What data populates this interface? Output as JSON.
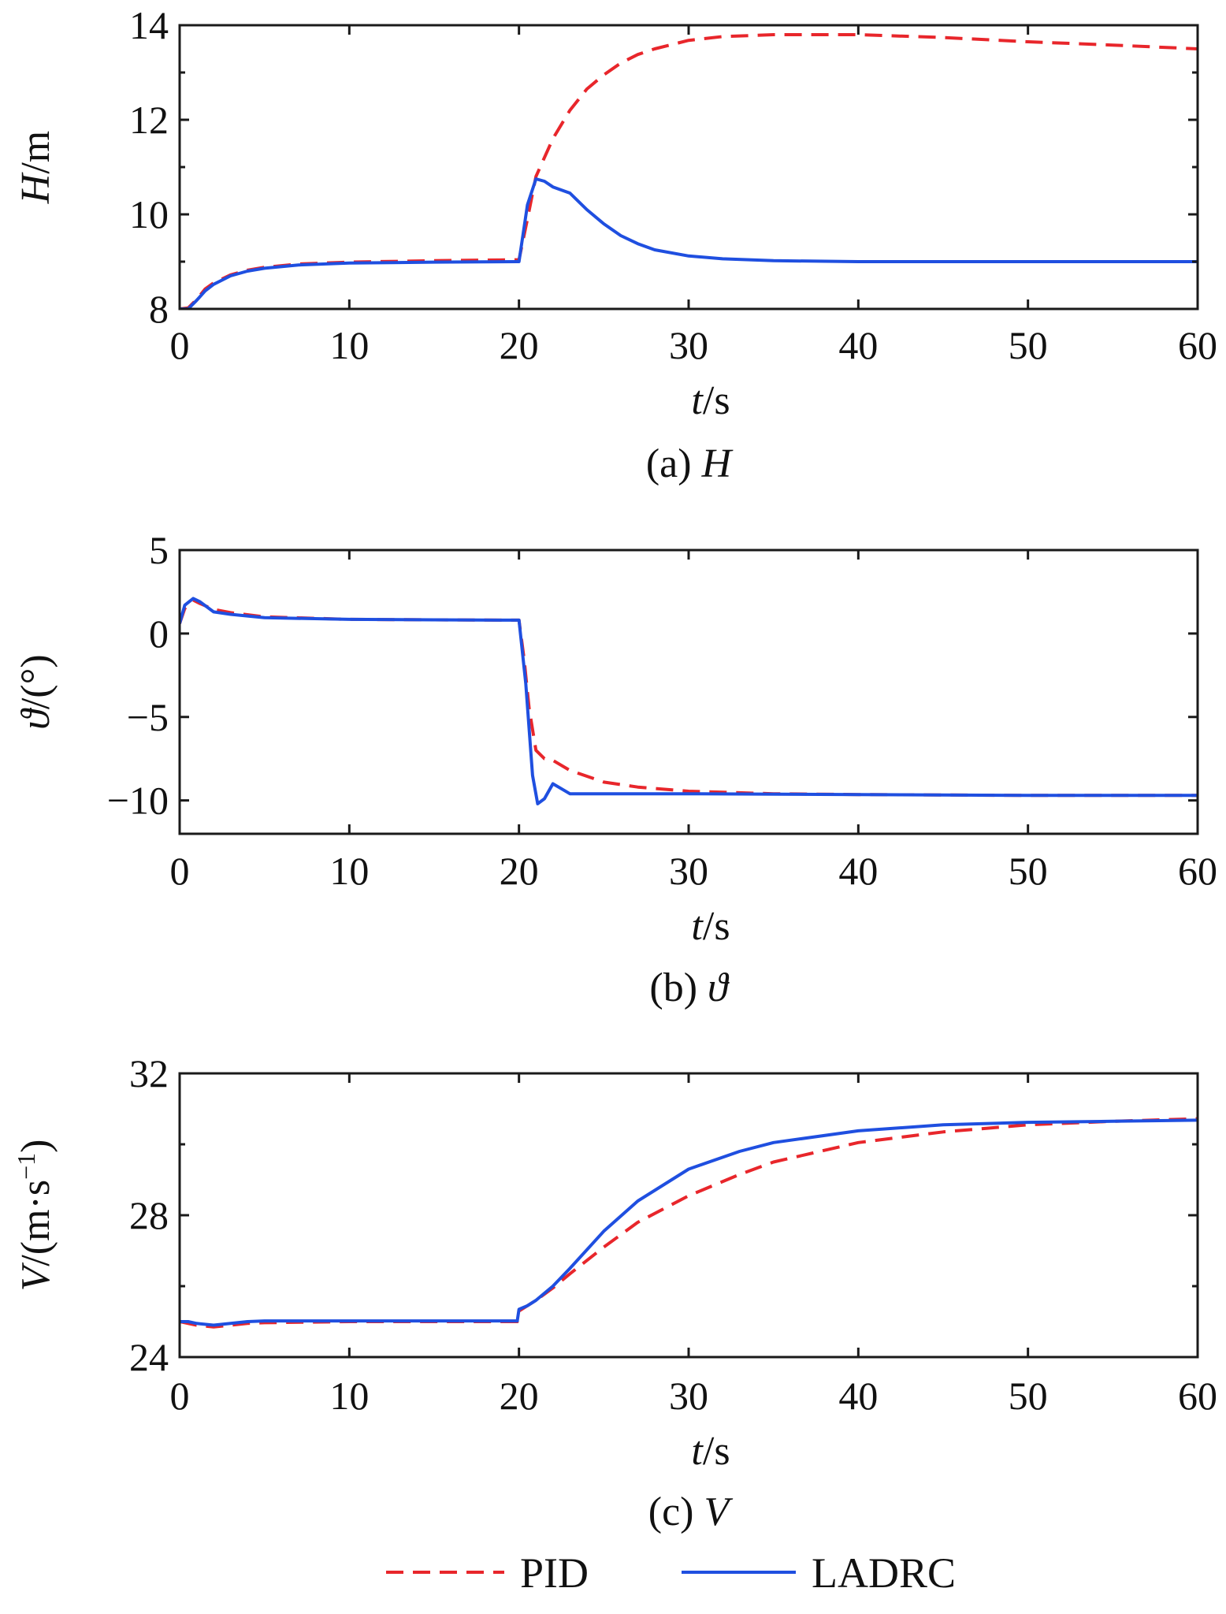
{
  "colors": {
    "pid": "#e8262b",
    "ladrc": "#1f4fe0",
    "axis": "#1a1a1a"
  },
  "legend": {
    "pid": "PID",
    "ladrc": "LADRC"
  },
  "chart_data": [
    {
      "type": "line",
      "id": "H",
      "caption": {
        "prefix": "(a) ",
        "symbol": "H"
      },
      "ylabel": {
        "symbol": "H",
        "unit": "/m"
      },
      "xlabel": {
        "symbol": "t",
        "unit": "/s"
      },
      "xlim": [
        0,
        60
      ],
      "ylim": [
        8,
        14
      ],
      "xticks": [
        0,
        10,
        20,
        30,
        40,
        50,
        60
      ],
      "xtick_labels": [
        "0",
        "10",
        "20",
        "30",
        "40",
        "50",
        "60"
      ],
      "yticks": [
        8,
        10,
        12,
        14
      ],
      "ytick_labels": [
        "8",
        "10",
        "12",
        "14"
      ],
      "minor_yticks": [
        9,
        11,
        13
      ],
      "series": [
        {
          "name": "PID",
          "style": "dashed",
          "x": [
            0,
            0.5,
            1,
            1.5,
            2,
            3,
            4,
            5,
            7,
            10,
            15,
            19.9,
            20,
            20.5,
            21,
            22,
            23,
            24,
            25,
            26,
            27,
            28,
            30,
            32,
            35,
            38,
            40,
            45,
            50,
            55,
            60
          ],
          "y": [
            8,
            8.02,
            8.2,
            8.42,
            8.55,
            8.72,
            8.82,
            8.88,
            8.95,
            8.99,
            9.02,
            9.04,
            9.04,
            9.9,
            10.8,
            11.6,
            12.2,
            12.65,
            12.95,
            13.2,
            13.38,
            13.5,
            13.68,
            13.76,
            13.8,
            13.8,
            13.8,
            13.74,
            13.65,
            13.58,
            13.5
          ]
        },
        {
          "name": "LADRC",
          "style": "solid",
          "x": [
            0,
            0.5,
            1,
            1.5,
            2,
            3,
            4,
            5,
            7,
            10,
            15,
            19.9,
            20,
            20.5,
            21,
            21.5,
            22,
            23,
            24,
            25,
            26,
            27,
            28,
            30,
            32,
            35,
            40,
            45,
            50,
            55,
            60
          ],
          "y": [
            8,
            8.0,
            8.18,
            8.38,
            8.52,
            8.7,
            8.8,
            8.86,
            8.93,
            8.97,
            8.99,
            9.0,
            9.0,
            10.2,
            10.75,
            10.7,
            10.58,
            10.45,
            10.1,
            9.8,
            9.55,
            9.38,
            9.25,
            9.12,
            9.06,
            9.02,
            9.0,
            9.0,
            9.0,
            9.0,
            9.0
          ]
        }
      ]
    },
    {
      "type": "line",
      "id": "theta",
      "caption": {
        "prefix": "(b) ",
        "symbol": "ϑ"
      },
      "ylabel": {
        "symbol": "ϑ",
        "unit": "/(°)"
      },
      "xlabel": {
        "symbol": "t",
        "unit": "/s"
      },
      "xlim": [
        0,
        60
      ],
      "ylim": [
        -12,
        5
      ],
      "xticks": [
        0,
        10,
        20,
        30,
        40,
        50,
        60
      ],
      "xtick_labels": [
        "0",
        "10",
        "20",
        "30",
        "40",
        "50",
        "60"
      ],
      "yticks": [
        -10,
        -5,
        0,
        5
      ],
      "ytick_labels": [
        "−10",
        "−5",
        "0",
        "5"
      ],
      "minor_yticks": [],
      "series": [
        {
          "name": "PID",
          "style": "dashed",
          "x": [
            0,
            0.3,
            0.8,
            1.2,
            2,
            3,
            5,
            10,
            15,
            20,
            20.3,
            20.6,
            21,
            21.5,
            22,
            23,
            25,
            27,
            30,
            35,
            40,
            50,
            60
          ],
          "y": [
            0.6,
            1.5,
            2.0,
            1.8,
            1.45,
            1.25,
            1.0,
            0.85,
            0.82,
            0.8,
            -1.5,
            -4.5,
            -7.0,
            -7.5,
            -7.6,
            -8.2,
            -8.9,
            -9.2,
            -9.45,
            -9.6,
            -9.65,
            -9.7,
            -9.7
          ]
        },
        {
          "name": "LADRC",
          "style": "solid",
          "x": [
            0,
            0.3,
            0.8,
            1.2,
            2,
            3,
            5,
            10,
            15,
            19.9,
            20,
            20.4,
            20.8,
            21.1,
            21.5,
            22,
            22.5,
            23,
            24,
            30,
            40,
            50,
            60
          ],
          "y": [
            0.6,
            1.7,
            2.1,
            1.9,
            1.3,
            1.15,
            0.95,
            0.85,
            0.82,
            0.8,
            0.8,
            -3.0,
            -8.5,
            -10.2,
            -9.9,
            -9.0,
            -9.3,
            -9.6,
            -9.6,
            -9.6,
            -9.65,
            -9.7,
            -9.7
          ]
        }
      ]
    },
    {
      "type": "line",
      "id": "V",
      "caption": {
        "prefix": "(c) ",
        "symbol": "V"
      },
      "ylabel": {
        "symbol": "V",
        "unit": "/(m·s",
        "sup": "−1",
        "close": ")"
      },
      "xlabel": {
        "symbol": "t",
        "unit": "/s"
      },
      "xlim": [
        0,
        60
      ],
      "ylim": [
        24,
        32
      ],
      "xticks": [
        0,
        10,
        20,
        30,
        40,
        50,
        60
      ],
      "xtick_labels": [
        "0",
        "10",
        "20",
        "30",
        "40",
        "50",
        "60"
      ],
      "yticks": [
        24,
        28,
        32
      ],
      "ytick_labels": [
        "24",
        "28",
        "32"
      ],
      "minor_yticks": [
        26,
        30
      ],
      "series": [
        {
          "name": "PID",
          "style": "dashed",
          "x": [
            0,
            0.5,
            1,
            2,
            3,
            4,
            5,
            10,
            15,
            19.9,
            20,
            20.5,
            21,
            22,
            23,
            25,
            27,
            30,
            33,
            35,
            40,
            45,
            50,
            55,
            60
          ],
          "y": [
            25.0,
            24.95,
            24.9,
            24.85,
            24.9,
            24.95,
            24.97,
            25.0,
            25.0,
            25.0,
            25.3,
            25.45,
            25.6,
            25.95,
            26.35,
            27.1,
            27.8,
            28.55,
            29.15,
            29.5,
            30.05,
            30.35,
            30.55,
            30.65,
            30.72
          ]
        },
        {
          "name": "LADRC",
          "style": "solid",
          "x": [
            0,
            0.5,
            1,
            2,
            3,
            4,
            5,
            10,
            15,
            19.9,
            20,
            20.5,
            21,
            22,
            23,
            25,
            27,
            30,
            33,
            35,
            40,
            45,
            50,
            55,
            60
          ],
          "y": [
            25.0,
            25.0,
            24.95,
            24.9,
            24.95,
            25.0,
            25.02,
            25.02,
            25.02,
            25.02,
            25.35,
            25.45,
            25.6,
            26.0,
            26.5,
            27.55,
            28.4,
            29.3,
            29.8,
            30.05,
            30.38,
            30.55,
            30.62,
            30.65,
            30.68
          ]
        }
      ]
    }
  ]
}
